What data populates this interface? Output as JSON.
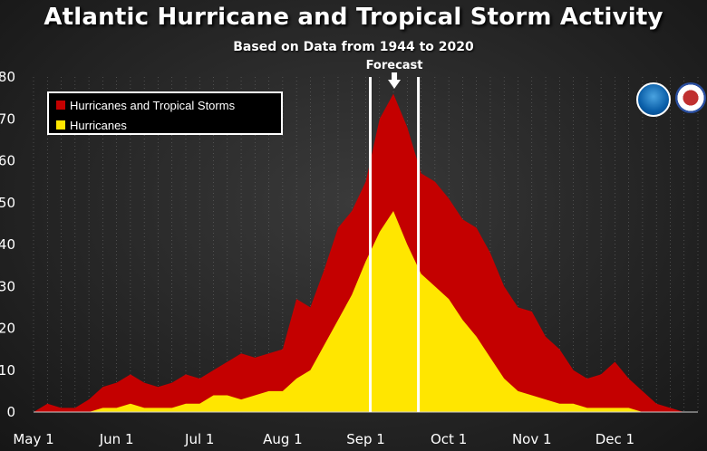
{
  "chart_data": {
    "type": "area",
    "title": "Atlantic Hurricane and Tropical Storm Activity",
    "subtitle": "Based on Data from 1944 to 2020",
    "annotation": "Forecast",
    "xlabel": "",
    "ylabel": "",
    "x_ticks": [
      "May 1",
      "Jun 1",
      "Jul 1",
      "Aug 1",
      "Sep 1",
      "Oct 1",
      "Nov 1",
      "Dec 1"
    ],
    "y_ticks": [
      "0",
      "10",
      "20",
      "30",
      "40",
      "50",
      "60",
      "70",
      "80"
    ],
    "ylim": [
      0,
      80
    ],
    "grid": "vertical dotted",
    "legend_position": "top-left",
    "x": [
      "May 1",
      "May 6",
      "May 11",
      "May 16",
      "May 21",
      "May 26",
      "Jun 1",
      "Jun 6",
      "Jun 11",
      "Jun 16",
      "Jun 21",
      "Jun 26",
      "Jul 1",
      "Jul 6",
      "Jul 11",
      "Jul 16",
      "Jul 21",
      "Jul 26",
      "Aug 1",
      "Aug 6",
      "Aug 11",
      "Aug 16",
      "Aug 21",
      "Aug 26",
      "Sep 1",
      "Sep 6",
      "Sep 11",
      "Sep 16",
      "Sep 21",
      "Sep 26",
      "Oct 1",
      "Oct 6",
      "Oct 11",
      "Oct 16",
      "Oct 21",
      "Oct 26",
      "Nov 1",
      "Nov 6",
      "Nov 11",
      "Nov 16",
      "Nov 21",
      "Nov 26",
      "Dec 1",
      "Dec 6",
      "Dec 11",
      "Dec 16",
      "Dec 21",
      "Dec 26",
      "Dec 31"
    ],
    "series": [
      {
        "name": "Hurricanes and Tropical Storms",
        "color": "#c40000",
        "values": [
          0,
          2,
          1,
          1,
          3,
          6,
          7,
          9,
          7,
          6,
          7,
          9,
          8,
          10,
          12,
          14,
          13,
          14,
          15,
          27,
          25,
          34,
          44,
          48,
          55,
          70,
          76,
          68,
          57,
          55,
          51,
          46,
          44,
          38,
          30,
          25,
          24,
          18,
          15,
          10,
          8,
          9,
          12,
          8,
          5,
          2,
          1,
          0,
          0
        ]
      },
      {
        "name": "Hurricanes",
        "color": "#ffe600",
        "values": [
          0,
          0,
          0,
          0,
          0,
          1,
          1,
          2,
          1,
          1,
          1,
          2,
          2,
          4,
          4,
          3,
          4,
          5,
          5,
          8,
          10,
          16,
          22,
          28,
          36,
          43,
          48,
          40,
          33,
          30,
          27,
          22,
          18,
          13,
          8,
          5,
          4,
          3,
          2,
          2,
          1,
          1,
          1,
          1,
          0,
          0,
          0,
          0,
          0
        ]
      }
    ]
  }
}
